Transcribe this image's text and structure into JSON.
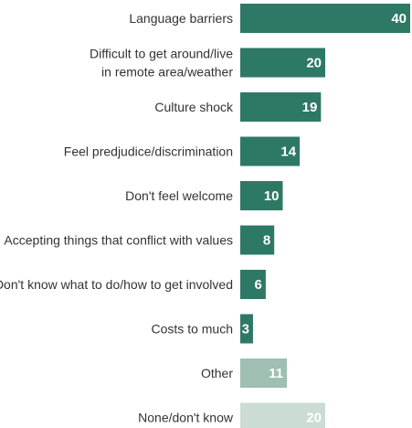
{
  "chart_data": {
    "type": "bar",
    "orientation": "horizontal",
    "title": "",
    "xlabel": "",
    "ylabel": "",
    "xlim": [
      0,
      40
    ],
    "grid": false,
    "categories": [
      [
        "Language barriers"
      ],
      [
        "Difficult to get around/live",
        "in remote area/weather"
      ],
      [
        "Culture shock"
      ],
      [
        "Feel predjudice/discrimination"
      ],
      [
        "Don't feel welcome"
      ],
      [
        "Accepting things that conflict with values"
      ],
      [
        "Don't know what to do/how to get involved"
      ],
      [
        "Costs to much"
      ],
      [
        "Other"
      ],
      [
        "None/don't know"
      ]
    ],
    "values": [
      40,
      20,
      19,
      14,
      10,
      8,
      6,
      3,
      11,
      20
    ],
    "colors": [
      "#2e7866",
      "#2e7866",
      "#2e7866",
      "#2e7866",
      "#2e7866",
      "#2e7866",
      "#2e7866",
      "#2e7866",
      "#9ebfb2",
      "#cadcd3"
    ]
  }
}
